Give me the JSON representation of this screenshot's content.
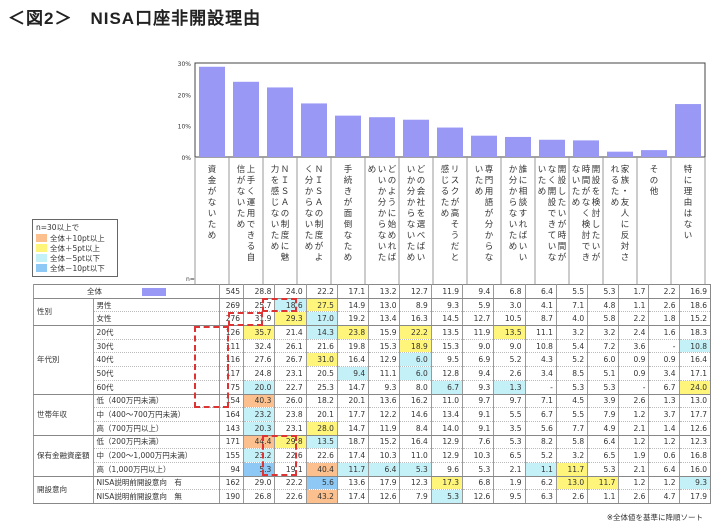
{
  "title": "＜図2＞　NISA口座非開設理由",
  "legend": {
    "heading": "n=30以上で",
    "items": [
      {
        "label": "全体＋10pt以上",
        "color": "#fbc08d"
      },
      {
        "label": "全体＋5pt以上",
        "color": "#fff57a"
      },
      {
        "label": "全体－5pt以下",
        "color": "#c4f1f7"
      },
      {
        "label": "全体－10pt以下",
        "color": "#8ec8f5"
      }
    ]
  },
  "n_label": "n=",
  "note": "※全体値を基準に降順ソート",
  "bar_color": "#9999f5",
  "chart_data": {
    "type": "bar",
    "categories": [
      "資金がないため",
      "上手く運用できる自信がないため",
      "ＮＩＳＡの制度に魅力を感じないため",
      "ＮＩＳＡの制度がよく分からないため",
      "手続きが面倒なため",
      "どのように始めればいいか分からないため",
      "どの会社を選べばいいか分からないため",
      "リスクが高そうだと感じるため",
      "専門用語が分からないため",
      "誰に相談すればいいか分からないため",
      "開設したいが時間がなく開設できていないため",
      "開設を検討したいが時間がなく検討できないため",
      "家族・友人に反対されるため",
      "その他",
      "特に理由はない"
    ],
    "values": [
      28.8,
      24.0,
      22.2,
      17.1,
      13.2,
      12.7,
      11.9,
      9.4,
      6.8,
      6.4,
      5.5,
      5.3,
      1.7,
      2.2,
      16.9
    ],
    "yticks": [
      "0%",
      "10%",
      "20%",
      "30%"
    ],
    "ylim": [
      0,
      30
    ]
  },
  "table": {
    "rows": [
      {
        "group": "",
        "label": "全体",
        "n": "545",
        "v": [
          "28.8",
          "24.0",
          "22.2",
          "17.1",
          "13.2",
          "12.7",
          "11.9",
          "9.4",
          "6.8",
          "6.4",
          "5.5",
          "5.3",
          "1.7",
          "2.2",
          "16.9"
        ],
        "h": []
      },
      {
        "group": "性別",
        "label": "男性",
        "n": "269",
        "v": [
          "25.7",
          "18.6",
          "27.5",
          "14.9",
          "13.0",
          "8.9",
          "9.3",
          "5.9",
          "3.0",
          "4.1",
          "7.1",
          "4.8",
          "1.1",
          "2.6",
          "18.6"
        ],
        "h": [
          "",
          "c",
          "y"
        ]
      },
      {
        "group": "",
        "label": "女性",
        "n": "276",
        "v": [
          "31.9",
          "29.3",
          "17.0",
          "19.2",
          "13.4",
          "16.3",
          "14.5",
          "12.7",
          "10.5",
          "8.7",
          "4.0",
          "5.8",
          "2.2",
          "1.8",
          "15.2"
        ],
        "h": [
          "",
          "y",
          "c"
        ]
      },
      {
        "group": "年代別",
        "label": "20代",
        "n": "126",
        "v": [
          "35.7",
          "21.4",
          "14.3",
          "23.8",
          "15.9",
          "22.2",
          "13.5",
          "11.9",
          "13.5",
          "11.1",
          "3.2",
          "3.2",
          "2.4",
          "1.6",
          "18.3"
        ],
        "h": [
          "y",
          "",
          "c",
          "y",
          "",
          "y",
          "",
          "",
          "y"
        ]
      },
      {
        "group": "",
        "label": "30代",
        "n": "111",
        "v": [
          "32.4",
          "26.1",
          "21.6",
          "19.8",
          "15.3",
          "18.9",
          "15.3",
          "9.0",
          "9.0",
          "10.8",
          "5.4",
          "7.2",
          "3.6",
          "-",
          "10.8"
        ],
        "h": [
          "",
          "",
          "",
          "",
          "",
          "y",
          "",
          "",
          "",
          "",
          "",
          "",
          "",
          "",
          "c"
        ]
      },
      {
        "group": "",
        "label": "40代",
        "n": "116",
        "v": [
          "27.6",
          "26.7",
          "31.0",
          "16.4",
          "12.9",
          "6.0",
          "9.5",
          "6.9",
          "5.2",
          "4.3",
          "5.2",
          "6.0",
          "0.9",
          "0.9",
          "16.4"
        ],
        "h": [
          "",
          "",
          "y",
          "",
          "",
          "c"
        ]
      },
      {
        "group": "",
        "label": "50代",
        "n": "117",
        "v": [
          "24.8",
          "23.1",
          "20.5",
          "9.4",
          "11.1",
          "6.0",
          "12.8",
          "9.4",
          "2.6",
          "3.4",
          "8.5",
          "5.1",
          "0.9",
          "3.4",
          "17.1"
        ],
        "h": [
          "",
          "",
          "",
          "c",
          "",
          "c"
        ]
      },
      {
        "group": "",
        "label": "60代",
        "n": "75",
        "v": [
          "20.0",
          "22.7",
          "25.3",
          "14.7",
          "9.3",
          "8.0",
          "6.7",
          "9.3",
          "1.3",
          "-",
          "5.3",
          "5.3",
          "-",
          "6.7",
          "24.0"
        ],
        "h": [
          "c",
          "",
          "",
          "",
          "",
          "",
          "c",
          "",
          "c",
          "",
          "",
          "",
          "",
          "",
          "y"
        ]
      },
      {
        "group": "世帯年収",
        "label": "低（400万円未満）",
        "n": "154",
        "v": [
          "40.3",
          "26.0",
          "18.2",
          "20.1",
          "13.6",
          "16.2",
          "11.0",
          "9.7",
          "9.7",
          "7.1",
          "4.5",
          "3.9",
          "2.6",
          "1.3",
          "13.0"
        ],
        "h": [
          "o"
        ]
      },
      {
        "group": "",
        "label": "中（400～700万円未満）",
        "n": "164",
        "v": [
          "23.2",
          "23.8",
          "20.1",
          "17.7",
          "12.2",
          "14.6",
          "13.4",
          "9.1",
          "5.5",
          "6.7",
          "5.5",
          "7.9",
          "1.2",
          "3.7",
          "17.7"
        ],
        "h": [
          "c"
        ]
      },
      {
        "group": "",
        "label": "高（700万円以上）",
        "n": "143",
        "v": [
          "20.3",
          "23.1",
          "28.0",
          "14.7",
          "11.9",
          "8.4",
          "14.0",
          "9.1",
          "3.5",
          "5.6",
          "7.7",
          "4.9",
          "2.1",
          "1.4",
          "12.6"
        ],
        "h": [
          "c",
          "",
          "y"
        ]
      },
      {
        "group": "保有金融資産額",
        "label": "低（200万円未満）",
        "n": "171",
        "v": [
          "44.4",
          "29.8",
          "13.5",
          "18.7",
          "15.2",
          "16.4",
          "12.9",
          "7.6",
          "5.3",
          "8.2",
          "5.8",
          "6.4",
          "1.2",
          "1.2",
          "12.3"
        ],
        "h": [
          "o",
          "y",
          "c"
        ]
      },
      {
        "group": "",
        "label": "中（200～1,000万円未満）",
        "n": "155",
        "v": [
          "23.2",
          "22.6",
          "22.6",
          "17.4",
          "10.3",
          "11.0",
          "12.9",
          "10.3",
          "6.5",
          "5.2",
          "3.2",
          "6.5",
          "1.9",
          "0.6",
          "16.8"
        ],
        "h": [
          "c"
        ]
      },
      {
        "group": "",
        "label": "高（1,000万円以上）",
        "n": "94",
        "v": [
          "5.3",
          "19.1",
          "40.4",
          "11.7",
          "6.4",
          "5.3",
          "9.6",
          "5.3",
          "2.1",
          "1.1",
          "11.7",
          "5.3",
          "2.1",
          "6.4",
          "16.0"
        ],
        "h": [
          "b",
          "",
          "o",
          "c",
          "c",
          "c",
          "",
          "",
          "",
          "c",
          "y"
        ]
      },
      {
        "group": "開設意向",
        "label": "NISA説明前開設意向　有",
        "n": "162",
        "v": [
          "29.0",
          "22.2",
          "5.6",
          "13.6",
          "17.9",
          "12.3",
          "17.3",
          "6.8",
          "1.9",
          "6.2",
          "13.0",
          "11.7",
          "1.2",
          "1.2",
          "9.3"
        ],
        "h": [
          "",
          "",
          "b",
          "",
          "",
          "",
          "y",
          "",
          "",
          "",
          "y",
          "y",
          "",
          "",
          "c"
        ]
      },
      {
        "group": "",
        "label": "NISA説明前開設意向　無",
        "n": "190",
        "v": [
          "26.8",
          "22.6",
          "43.2",
          "17.4",
          "12.6",
          "7.9",
          "5.3",
          "12.6",
          "9.5",
          "6.3",
          "2.6",
          "1.1",
          "2.6",
          "4.7",
          "17.9"
        ],
        "h": [
          "",
          "",
          "o",
          "",
          "",
          "",
          "c"
        ]
      }
    ]
  }
}
